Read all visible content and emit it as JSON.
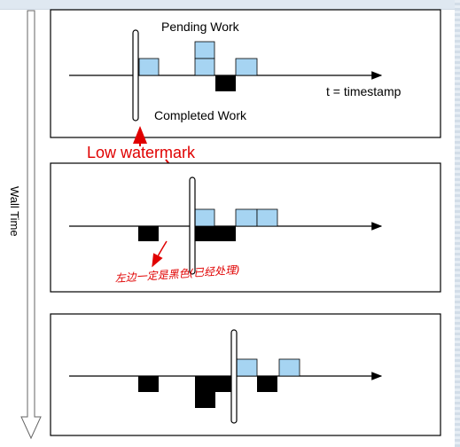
{
  "diagram": {
    "wall_time_label": "Wall Time",
    "panel1": {
      "pending_label": "Pending Work",
      "completed_label": "Completed Work",
      "axis_label": "t = timestamp"
    },
    "low_watermark_label": "Low watermark",
    "handwritten_note": "左边一定是黑色(已经处理)"
  },
  "colors": {
    "pending_block": "#a6d4f2",
    "completed_block": "#000000",
    "annotation": "#e00000",
    "wall_time_arrow_fill": "#ffffff"
  }
}
